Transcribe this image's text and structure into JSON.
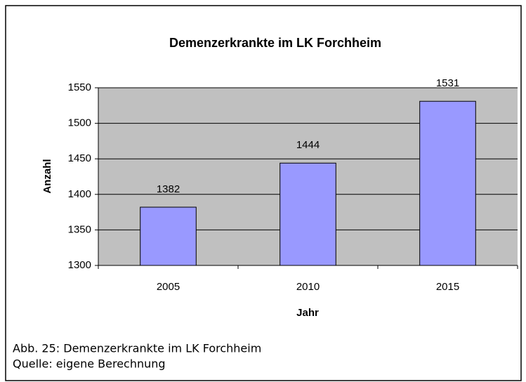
{
  "chart_data": {
    "type": "bar",
    "title": "Demenzerkrankte im LK Forchheim",
    "x_label": "Jahr",
    "y_label": "Anzahl",
    "categories": [
      "2005",
      "2010",
      "2015"
    ],
    "values": [
      1382,
      1444,
      1531
    ],
    "color": "#9999ff",
    "ylim": [
      1300,
      1550
    ],
    "yticks": [
      1300,
      1350,
      1400,
      1450,
      1500,
      1550
    ],
    "grid": true,
    "plot_background": "#c0c0c0"
  },
  "caption": [
    "Abb. 25: Demenzerkrankte im LK Forchheim",
    "Quelle: eigene Berechnung"
  ]
}
